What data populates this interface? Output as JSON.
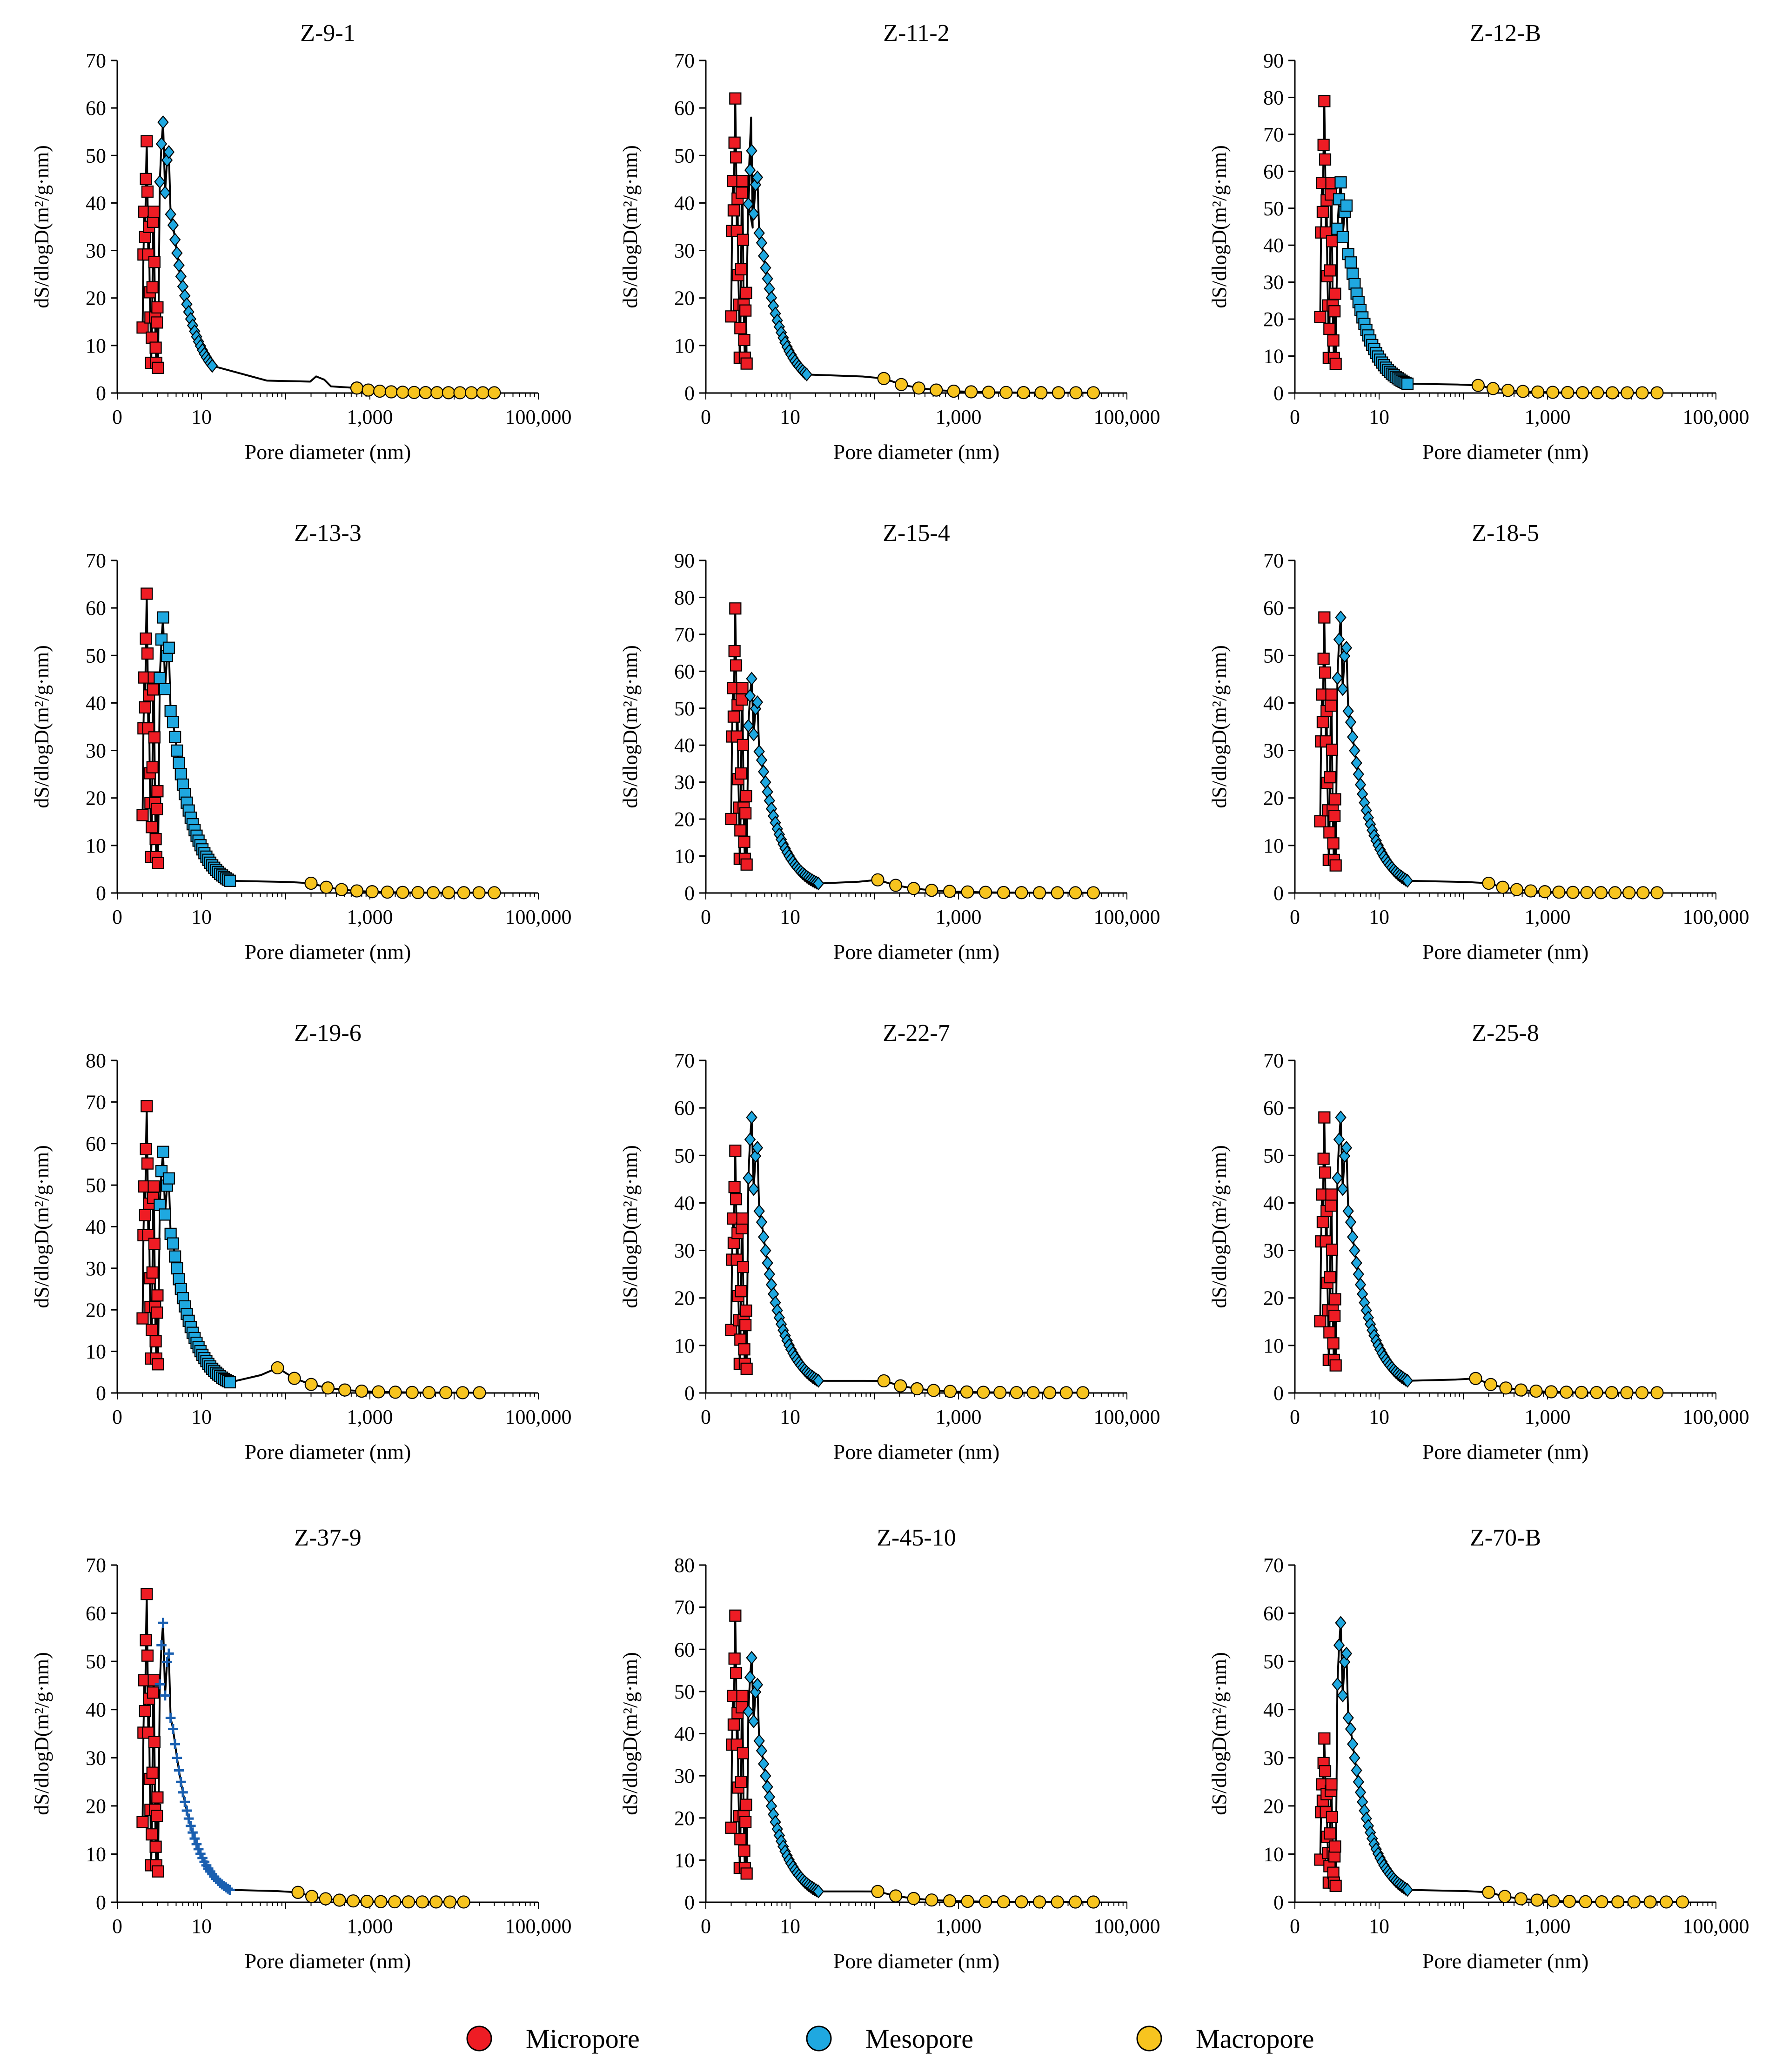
{
  "legend": {
    "items": [
      {
        "label": "Micropore",
        "color": "#ee1c24"
      },
      {
        "label": "Mesopore",
        "color": "#1fa8e0"
      },
      {
        "label": "Macropore",
        "color": "#f7c41f"
      }
    ]
  },
  "chart_data": [
    {
      "type": "line",
      "title": "Z-9-1",
      "xlabel": "Pore diameter (nm)",
      "ylabel": "dS/dlogD(m²/g·nm)",
      "xscale": "log",
      "xlim": [
        1,
        100000
      ],
      "ylim": [
        0,
        70
      ],
      "yticks": [
        0,
        10,
        20,
        30,
        40,
        50,
        60,
        70
      ],
      "xtick_labels": [
        "0",
        "10",
        "1,000",
        "100,000"
      ],
      "micro_peak": 53,
      "meso_peak": 57,
      "meso_marker": "diamond",
      "macro_range": [
        700,
        30000
      ],
      "macro_max": 1,
      "bump_at": [
        230,
        3.5
      ]
    },
    {
      "type": "line",
      "title": "Z-11-2",
      "xlabel": "Pore diameter (nm)",
      "ylabel": "dS/dlogD(m²/g·nm)",
      "xscale": "log",
      "xlim": [
        1,
        100000
      ],
      "ylim": [
        0,
        70
      ],
      "yticks": [
        0,
        10,
        20,
        30,
        40,
        50,
        60,
        70
      ],
      "xtick_labels": [
        "0",
        "10",
        "1,000",
        "100,000"
      ],
      "micro_peak": 62,
      "meso_peak": 51,
      "curve_peak": 58,
      "meso_marker": "diamond",
      "macro_range": [
        130,
        40000
      ],
      "macro_max": 3
    },
    {
      "type": "line",
      "title": "Z-12-B",
      "xlabel": "Pore diameter (nm)",
      "ylabel": "dS/dlogD(m²/g·nm)",
      "xscale": "log",
      "xlim": [
        1,
        100000
      ],
      "ylim": [
        0,
        90
      ],
      "yticks": [
        0,
        10,
        20,
        30,
        40,
        50,
        60,
        70,
        80,
        90
      ],
      "xtick_labels": [
        "0",
        "10",
        "1,000",
        "100,000"
      ],
      "micro_peak": 79,
      "meso_peak": 57,
      "meso_marker": "square",
      "macro_range": [
        150,
        20000
      ],
      "macro_max": 2
    },
    {
      "type": "line",
      "title": "Z-13-3",
      "xlabel": "Pore diameter (nm)",
      "ylabel": "dS/dlogD(m²/g·nm)",
      "xscale": "log",
      "xlim": [
        1,
        100000
      ],
      "ylim": [
        0,
        70
      ],
      "yticks": [
        0,
        10,
        20,
        30,
        40,
        50,
        60,
        70
      ],
      "xtick_labels": [
        "0",
        "10",
        "1,000",
        "100,000"
      ],
      "micro_peak": 63,
      "meso_peak": 58,
      "meso_marker": "square",
      "macro_range": [
        200,
        30000
      ],
      "macro_max": 2
    },
    {
      "type": "line",
      "title": "Z-15-4",
      "xlabel": "Pore diameter (nm)",
      "ylabel": "dS/dlogD(m²/g·nm)",
      "xscale": "log",
      "xlim": [
        1,
        100000
      ],
      "ylim": [
        0,
        90
      ],
      "yticks": [
        0,
        10,
        20,
        30,
        40,
        50,
        60,
        70,
        80,
        90
      ],
      "xtick_labels": [
        "0",
        "10",
        "1,000",
        "100,000"
      ],
      "micro_peak": 77,
      "meso_peak": 58,
      "meso_marker": "diamond",
      "macro_range": [
        110,
        40000
      ],
      "macro_max": 3.5
    },
    {
      "type": "line",
      "title": "Z-18-5",
      "xlabel": "Pore diameter (nm)",
      "ylabel": "dS/dlogD(m²/g·nm)",
      "xscale": "log",
      "xlim": [
        1,
        100000
      ],
      "ylim": [
        0,
        70
      ],
      "yticks": [
        0,
        10,
        20,
        30,
        40,
        50,
        60,
        70
      ],
      "xtick_labels": [
        "0",
        "10",
        "1,000",
        "100,000"
      ],
      "micro_peak": 58,
      "meso_peak": 58,
      "meso_marker": "diamond",
      "macro_range": [
        200,
        20000
      ],
      "macro_max": 2
    },
    {
      "type": "line",
      "title": "Z-19-6",
      "xlabel": "Pore diameter (nm)",
      "ylabel": "dS/dlogD(m²/g·nm)",
      "xscale": "log",
      "xlim": [
        1,
        100000
      ],
      "ylim": [
        0,
        80
      ],
      "yticks": [
        0,
        10,
        20,
        30,
        40,
        50,
        60,
        70,
        80
      ],
      "xtick_labels": [
        "0",
        "10",
        "1,000",
        "100,000"
      ],
      "micro_peak": 69,
      "meso_peak": 58,
      "meso_marker": "square",
      "macro_range": [
        80,
        20000
      ],
      "macro_max": 6
    },
    {
      "type": "line",
      "title": "Z-22-7",
      "xlabel": "Pore diameter (nm)",
      "ylabel": "dS/dlogD(m²/g·nm)",
      "xscale": "log",
      "xlim": [
        1,
        100000
      ],
      "ylim": [
        0,
        70
      ],
      "yticks": [
        0,
        10,
        20,
        30,
        40,
        50,
        60,
        70
      ],
      "xtick_labels": [
        "0",
        "10",
        "1,000",
        "100,000"
      ],
      "micro_peak": 51,
      "meso_peak": 58,
      "meso_marker": "diamond",
      "macro_range": [
        130,
        30000
      ],
      "macro_max": 2.5
    },
    {
      "type": "line",
      "title": "Z-25-8",
      "xlabel": "Pore diameter (nm)",
      "ylabel": "dS/dlogD(m²/g·nm)",
      "xscale": "log",
      "xlim": [
        1,
        100000
      ],
      "ylim": [
        0,
        70
      ],
      "yticks": [
        0,
        10,
        20,
        30,
        40,
        50,
        60,
        70
      ],
      "xtick_labels": [
        "0",
        "10",
        "1,000",
        "100,000"
      ],
      "micro_peak": 58,
      "meso_peak": 58,
      "meso_marker": "diamond",
      "macro_range": [
        140,
        20000
      ],
      "macro_max": 3
    },
    {
      "type": "line",
      "title": "Z-37-9",
      "xlabel": "Pore diameter (nm)",
      "ylabel": "dS/dlogD(m²/g·nm)",
      "xscale": "log",
      "xlim": [
        1,
        100000
      ],
      "ylim": [
        0,
        70
      ],
      "yticks": [
        0,
        10,
        20,
        30,
        40,
        50,
        60,
        70
      ],
      "xtick_labels": [
        "0",
        "10",
        "1,000",
        "100,000"
      ],
      "micro_peak": 64,
      "meso_peak": 58,
      "meso_marker": "plus",
      "macro_range": [
        140,
        13000
      ],
      "macro_max": 2
    },
    {
      "type": "line",
      "title": "Z-45-10",
      "xlabel": "Pore diameter (nm)",
      "ylabel": "dS/dlogD(m²/g·nm)",
      "xscale": "log",
      "xlim": [
        1,
        100000
      ],
      "ylim": [
        0,
        80
      ],
      "yticks": [
        0,
        10,
        20,
        30,
        40,
        50,
        60,
        70,
        80
      ],
      "xtick_labels": [
        "0",
        "10",
        "1,000",
        "100,000"
      ],
      "micro_peak": 68,
      "meso_peak": 58,
      "meso_marker": "diamond",
      "macro_range": [
        110,
        40000
      ],
      "macro_max": 2.5
    },
    {
      "type": "line",
      "title": "Z-70-B",
      "xlabel": "Pore diameter (nm)",
      "ylabel": "dS/dlogD(m²/g·nm)",
      "xscale": "log",
      "xlim": [
        1,
        100000
      ],
      "ylim": [
        0,
        70
      ],
      "yticks": [
        0,
        10,
        20,
        30,
        40,
        50,
        60,
        70
      ],
      "xtick_labels": [
        "0",
        "10",
        "1,000",
        "100,000"
      ],
      "micro_peak": 34,
      "meso_peak": 58,
      "meso_marker": "diamond",
      "macro_range": [
        200,
        40000
      ],
      "macro_max": 2
    }
  ]
}
